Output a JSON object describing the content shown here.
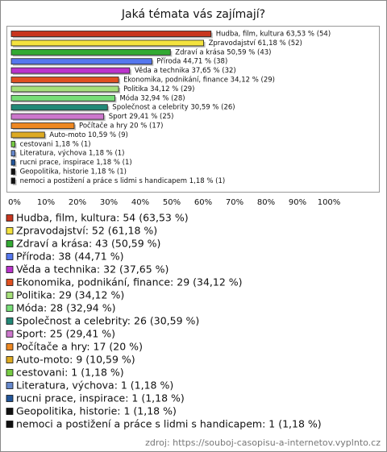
{
  "chart_data": {
    "type": "barh",
    "title": "Jaká témata vás zajímají?",
    "categories": [
      "Hudba, film, kultura",
      "Zpravodajství",
      "Zdraví a krása",
      "Příroda",
      "Věda a technika",
      "Ekonomika, podnikání, finance",
      "Politika",
      "Móda",
      "Společnost a celebrity",
      "Sport",
      "Počítače a hry",
      "Auto-moto",
      "cestovani",
      "Literatura, výchova",
      "rucni prace, inspirace",
      "Geopolitika, historie",
      "nemoci a postižení a práce s lidmi s handicapem"
    ],
    "values": [
      63.53,
      61.18,
      50.59,
      44.71,
      37.65,
      34.12,
      34.12,
      32.94,
      30.59,
      29.41,
      20,
      10.59,
      1.18,
      1.18,
      1.18,
      1.18,
      1.18
    ],
    "value_labels": [
      "Hudba, film, kultura 63,53 % (54)",
      "Zpravodajství 61,18 % (52)",
      "Zdraví a krása 50,59 % (43)",
      "Příroda 44,71 % (38)",
      "Věda a technika 37,65 % (32)",
      "Ekonomika, podnikání, finance 34,12 % (29)",
      "Politika 34,12 % (29)",
      "Móda 32,94 % (28)",
      "Společnost a celebrity 30,59 % (26)",
      "Sport 29,41 % (25)",
      "Počítače a hry 20 % (17)",
      "Auto-moto 10,59 % (9)",
      "cestovani 1,18 % (1)",
      "Literatura, výchova 1,18 % (1)",
      "rucni prace, inspirace 1,18 % (1)",
      "Geopolitika, historie 1,18 % (1)",
      "nemoci a postižení a práce s lidmi s handicapem 1,18 % (1)"
    ],
    "legend_labels": [
      "Hudba, film, kultura: 54 (63,53 %)",
      "Zpravodajství: 52 (61,18 %)",
      "Zdraví a krása: 43 (50,59 %)",
      "Příroda: 38 (44,71 %)",
      "Věda a technika: 32 (37,65 %)",
      "Ekonomika, podnikání, finance: 29 (34,12 %)",
      "Politika: 29 (34,12 %)",
      "Móda: 28 (32,94 %)",
      "Společnost a celebrity: 26 (30,59 %)",
      "Sport: 25 (29,41 %)",
      "Počítače a hry: 17 (20 %)",
      "Auto-moto: 9 (10,59 %)",
      "cestovani: 1 (1,18 %)",
      "Literatura, výchova: 1 (1,18 %)",
      "rucni prace, inspirace: 1 (1,18 %)",
      "Geopolitika, historie: 1 (1,18 %)",
      "nemoci a postižení a práce s lidmi s handicapem: 1 (1,18 %)"
    ],
    "colors": [
      "#c8361f",
      "#f3e23e",
      "#33aa33",
      "#5577ee",
      "#bb33cc",
      "#e05020",
      "#a6e07a",
      "#77dd77",
      "#228877",
      "#cc77cc",
      "#ee8822",
      "#ddaa22",
      "#77cc44",
      "#6688cc",
      "#225599",
      "#111111",
      "#111111"
    ],
    "xlim": [
      0,
      100
    ],
    "xticks": [
      {
        "value": 0,
        "label": "0%"
      },
      {
        "value": 10,
        "label": "10%"
      },
      {
        "value": 20,
        "label": "20%"
      },
      {
        "value": 30,
        "label": "30%"
      },
      {
        "value": 40,
        "label": "40%"
      },
      {
        "value": 50,
        "label": "50%"
      },
      {
        "value": 60,
        "label": "60%"
      },
      {
        "value": 70,
        "label": "70%"
      },
      {
        "value": 80,
        "label": "80%"
      },
      {
        "value": 90,
        "label": "90%"
      },
      {
        "value": 100,
        "label": "100%"
      }
    ],
    "source": "zdroj: https://souboj-casopisu-a-internetov.vyplnto.cz"
  }
}
